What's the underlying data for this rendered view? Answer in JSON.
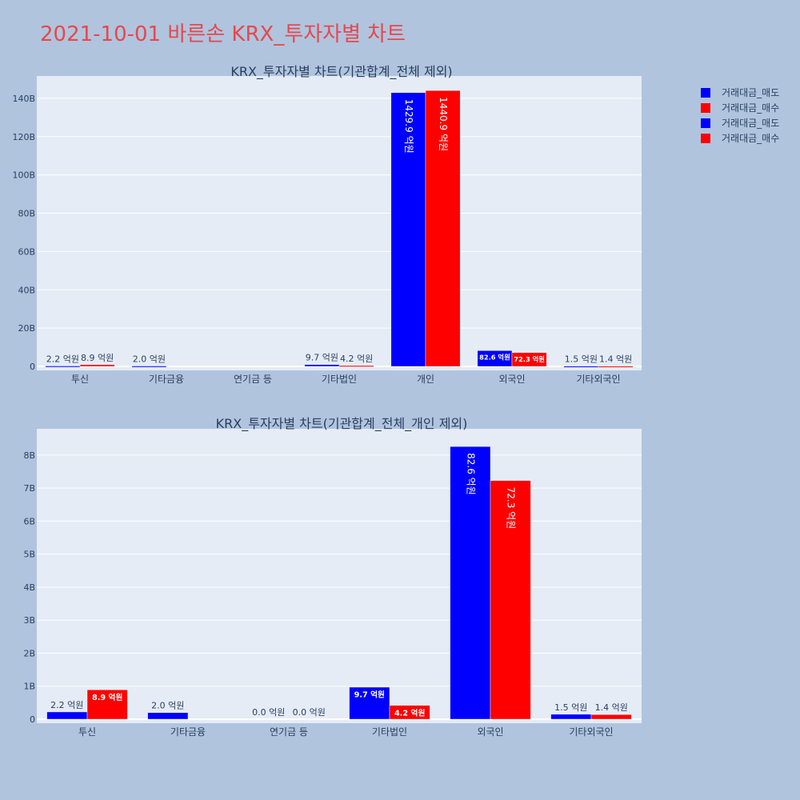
{
  "page_title": "2021-10-01 바른손 KRX_투자자별 차트",
  "colors": {
    "sell": "#0000ff",
    "buy": "#ff0000",
    "plot_bg": "#e5ecf6",
    "page_bg": "#b0c4de",
    "title": "#e5484d"
  },
  "legend": [
    {
      "label": "거래대금_매도",
      "color": "#0000ff"
    },
    {
      "label": "거래대금_매수",
      "color": "#ff0000"
    },
    {
      "label": "거래대금_매도",
      "color": "#0000ff"
    },
    {
      "label": "거래대금_매수",
      "color": "#ff0000"
    }
  ],
  "chart_data": [
    {
      "type": "bar",
      "title": "KRX_투자자별 차트(기관합계_전체 제외)",
      "categories": [
        "투신",
        "기타금융",
        "연기금 등",
        "기타법인",
        "개인",
        "외국인",
        "기타외국인"
      ],
      "series": [
        {
          "name": "거래대금_매도",
          "color": "#0000ff",
          "values": [
            220000000,
            200000000,
            0,
            970000000,
            142990000000,
            8260000000,
            150000000
          ],
          "labels": [
            "2.2 억원",
            "2.0 억원",
            "",
            "9.7 억원",
            "1429.9 억원",
            "82.6 억원",
            "1.5 억원"
          ]
        },
        {
          "name": "거래대금_매수",
          "color": "#ff0000",
          "values": [
            890000000,
            0,
            0,
            420000000,
            144090000000,
            7230000000,
            140000000
          ],
          "labels": [
            "8.9 억원",
            "",
            "",
            "4.2 억원",
            "1440.9 억원",
            "72.3 억원",
            "1.4 억원"
          ]
        }
      ],
      "ylim": [
        0,
        150000000000
      ],
      "yticks": [
        0,
        20000000000,
        40000000000,
        60000000000,
        80000000000,
        100000000000,
        120000000000,
        140000000000
      ],
      "ytick_labels": [
        "0",
        "20B",
        "40B",
        "60B",
        "80B",
        "100B",
        "120B",
        "140B"
      ],
      "grid": true
    },
    {
      "type": "bar",
      "title": "KRX_투자자별 차트(기관합계_전체_개인 제외)",
      "categories": [
        "투신",
        "기타금융",
        "연기금 등",
        "기타법인",
        "외국인",
        "기타외국인"
      ],
      "series": [
        {
          "name": "거래대금_매도",
          "color": "#0000ff",
          "values": [
            220000000,
            200000000,
            0,
            970000000,
            8260000000,
            150000000
          ],
          "labels": [
            "2.2 억원",
            "2.0 억원",
            "0.0 억원",
            "9.7 억원",
            "82.6 억원",
            "1.5 억원"
          ]
        },
        {
          "name": "거래대금_매수",
          "color": "#ff0000",
          "values": [
            890000000,
            0,
            0,
            420000000,
            7230000000,
            140000000
          ],
          "labels": [
            "8.9 억원",
            "",
            "0.0 억원",
            "4.2 억원",
            "72.3 억원",
            "1.4 억원"
          ]
        }
      ],
      "ylim": [
        0,
        8700000000
      ],
      "yticks": [
        0,
        1000000000,
        2000000000,
        3000000000,
        4000000000,
        5000000000,
        6000000000,
        7000000000,
        8000000000
      ],
      "ytick_labels": [
        "0",
        "1B",
        "2B",
        "3B",
        "4B",
        "5B",
        "6B",
        "7B",
        "8B"
      ],
      "grid": true
    }
  ]
}
